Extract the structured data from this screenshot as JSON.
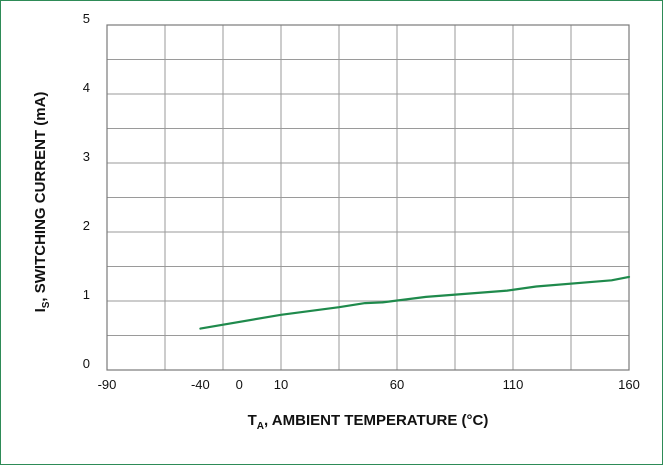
{
  "chart_data": {
    "type": "line",
    "title": "",
    "xlabel": "ambient temperature",
    "ylabel": "switching current",
    "xlabel_parts": {
      "main": "T",
      "sub": "A",
      "rest": ", AMBIENT TEMPERATURE (°C)"
    },
    "ylabel_parts": {
      "main": "I",
      "sub": "S",
      "rest": ", SWITCHING CURRENT (mA)"
    },
    "xticks": [
      {
        "label": "-90",
        "slot": 0
      },
      {
        "label": "-40",
        "slot": 1.61
      },
      {
        "label": "0",
        "slot": 2.28
      },
      {
        "label": "10",
        "slot": 3
      },
      {
        "label": "60",
        "slot": 5
      },
      {
        "label": "110",
        "slot": 7
      },
      {
        "label": "160",
        "slot": 9
      }
    ],
    "xslots": 9,
    "yticks": [
      "0",
      "1",
      "2",
      "3",
      "4",
      "5"
    ],
    "ylim": [
      0,
      5
    ],
    "grid": true,
    "series": [
      {
        "color": "#1f8a4c",
        "points": [
          {
            "slot": 1.61,
            "y": 0.6
          },
          {
            "slot": 3.0,
            "y": 0.8
          },
          {
            "slot": 4.0,
            "y": 0.91
          },
          {
            "slot": 4.45,
            "y": 0.97
          },
          {
            "slot": 4.75,
            "y": 0.98
          },
          {
            "slot": 5.5,
            "y": 1.06
          },
          {
            "slot": 6.9,
            "y": 1.15
          },
          {
            "slot": 7.4,
            "y": 1.21
          },
          {
            "slot": 8.7,
            "y": 1.3
          },
          {
            "slot": 9.0,
            "y": 1.35
          }
        ]
      }
    ]
  }
}
